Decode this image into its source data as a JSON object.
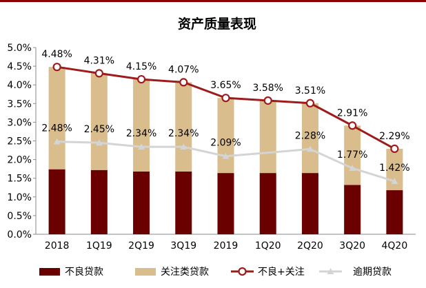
{
  "chart_data": {
    "type": "bar",
    "title": "资产质量表现",
    "categories": [
      "2018",
      "1Q19",
      "2Q19",
      "3Q19",
      "2019",
      "1Q20",
      "2Q20",
      "3Q20",
      "4Q20"
    ],
    "ylim": [
      0,
      5
    ],
    "yticks": [
      "0.0%",
      "0.5%",
      "1.0%",
      "1.5%",
      "2.0%",
      "2.5%",
      "3.0%",
      "3.5%",
      "4.0%",
      "4.5%",
      "5.0%"
    ],
    "legend_position": "bottom",
    "grid": false,
    "colors": {
      "npl": "#6b0000",
      "special": "#d9bd8c",
      "combined": "#9e1b1b",
      "overdue": "#d4d4d4"
    },
    "series": [
      {
        "name": "不良贷款",
        "type": "stacked-bar",
        "values": [
          1.74,
          1.72,
          1.68,
          1.68,
          1.64,
          1.64,
          1.64,
          1.32,
          1.18
        ]
      },
      {
        "name": "关注类贷款",
        "type": "stacked-bar",
        "values": [
          2.74,
          2.59,
          2.47,
          2.39,
          2.01,
          1.94,
          1.87,
          1.59,
          1.11
        ]
      },
      {
        "name": "不良+关注",
        "type": "line",
        "values": [
          4.48,
          4.31,
          4.15,
          4.07,
          3.65,
          3.58,
          3.51,
          2.91,
          2.29
        ],
        "labels": [
          "4.48%",
          "4.31%",
          "4.15%",
          "4.07%",
          "3.65%",
          "3.58%",
          "3.51%",
          "2.91%",
          "2.29%"
        ]
      },
      {
        "name": "逾期贷款",
        "type": "line",
        "values": [
          2.48,
          2.45,
          2.34,
          2.34,
          2.09,
          null,
          2.28,
          1.77,
          1.42
        ],
        "labels": [
          "2.48%",
          "2.45%",
          "2.34%",
          "2.34%",
          "2.09%",
          "",
          "2.28%",
          "1.77%",
          "1.42%"
        ]
      }
    ]
  }
}
